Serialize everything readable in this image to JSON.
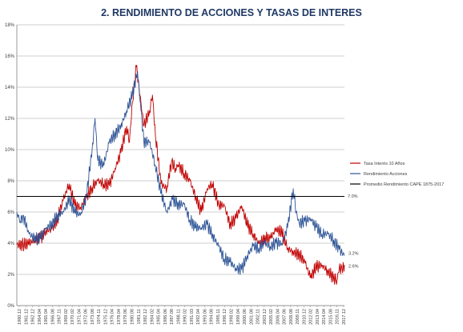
{
  "chart_data": {
    "type": "line",
    "title": "2. RENDIMIENTO DE ACCIONES Y TASAS DE INTERES",
    "xlabel": "",
    "ylabel": "",
    "ylim": [
      0,
      18
    ],
    "y_unit": "%",
    "y_ticks": [
      "0%",
      "2%",
      "4%",
      "6%",
      "8%",
      "10%",
      "12%",
      "14%",
      "16%",
      "18%"
    ],
    "x_range": [
      "1960.12",
      "2017.12"
    ],
    "x_tick_labels": [
      "1960.12",
      "1961.12",
      "1962.12",
      "1964.04",
      "1965.04",
      "1966.08",
      "1967.11",
      "1969.02",
      "1970.02",
      "1971.04",
      "1972.06",
      "1973.08",
      "1974.11",
      "1975.12",
      "1976.04",
      "1978.04",
      "1979.06",
      "1980.08",
      "1981.11",
      "1982.12",
      "1984.02",
      "1985.04",
      "1986.06",
      "1987.08",
      "1988.11",
      "1990.02",
      "1991.03",
      "1992.04",
      "1993.06",
      "1994.08",
      "1995.11",
      "1996.12",
      "1998.02",
      "1999.04",
      "2000.06",
      "2001.08",
      "2002.11",
      "2003.12",
      "2005.02",
      "2006.04",
      "2007.06",
      "2008.08",
      "2009.11",
      "2010.12",
      "2012.02",
      "2013.04",
      "2014.04",
      "2015.08",
      "2016.11",
      "2017.12"
    ],
    "legend_position": "right",
    "grid": "horizontal",
    "series": [
      {
        "name": "Tasa Interés 10 Años",
        "color": "#c00000",
        "points": [
          [
            1960.9,
            3.9
          ],
          [
            1962.0,
            3.9
          ],
          [
            1963.0,
            4.0
          ],
          [
            1964.0,
            4.2
          ],
          [
            1965.0,
            4.3
          ],
          [
            1966.0,
            4.8
          ],
          [
            1967.0,
            4.9
          ],
          [
            1968.0,
            5.6
          ],
          [
            1969.0,
            6.8
          ],
          [
            1970.0,
            7.8
          ],
          [
            1971.0,
            6.4
          ],
          [
            1972.0,
            6.3
          ],
          [
            1973.0,
            6.9
          ],
          [
            1974.0,
            7.6
          ],
          [
            1975.0,
            8.0
          ],
          [
            1976.0,
            7.8
          ],
          [
            1977.0,
            7.7
          ],
          [
            1978.0,
            8.8
          ],
          [
            1979.0,
            9.8
          ],
          [
            1980.0,
            11.5
          ],
          [
            1980.5,
            10.5
          ],
          [
            1981.0,
            13.0
          ],
          [
            1981.7,
            15.3
          ],
          [
            1982.5,
            13.0
          ],
          [
            1983.0,
            11.5
          ],
          [
            1984.0,
            12.5
          ],
          [
            1984.5,
            13.5
          ],
          [
            1985.0,
            11.0
          ],
          [
            1986.0,
            7.8
          ],
          [
            1987.0,
            7.5
          ],
          [
            1987.8,
            9.2
          ],
          [
            1988.5,
            8.8
          ],
          [
            1989.0,
            9.0
          ],
          [
            1990.0,
            8.5
          ],
          [
            1991.0,
            8.0
          ],
          [
            1992.0,
            7.0
          ],
          [
            1993.0,
            6.0
          ],
          [
            1994.0,
            7.5
          ],
          [
            1994.9,
            7.8
          ],
          [
            1996.0,
            6.5
          ],
          [
            1997.0,
            6.4
          ],
          [
            1998.0,
            5.2
          ],
          [
            1999.0,
            5.6
          ],
          [
            2000.0,
            6.4
          ],
          [
            2001.0,
            5.2
          ],
          [
            2002.0,
            4.6
          ],
          [
            2003.0,
            4.0
          ],
          [
            2004.0,
            4.3
          ],
          [
            2005.0,
            4.3
          ],
          [
            2006.0,
            4.9
          ],
          [
            2007.0,
            4.7
          ],
          [
            2008.0,
            3.7
          ],
          [
            2009.0,
            3.4
          ],
          [
            2010.0,
            3.3
          ],
          [
            2011.0,
            2.8
          ],
          [
            2012.0,
            1.8
          ],
          [
            2013.0,
            2.5
          ],
          [
            2014.0,
            2.6
          ],
          [
            2015.0,
            2.2
          ],
          [
            2016.0,
            1.8
          ],
          [
            2016.6,
            1.6
          ],
          [
            2017.0,
            2.4
          ],
          [
            2017.5,
            2.3
          ],
          [
            2017.9,
            2.6
          ]
        ]
      },
      {
        "name": "Rendimiento Acciones",
        "color": "#2f5597",
        "points": [
          [
            1960.9,
            6.0
          ],
          [
            1961.5,
            5.4
          ],
          [
            1962.0,
            5.8
          ],
          [
            1963.0,
            4.6
          ],
          [
            1964.0,
            4.3
          ],
          [
            1965.0,
            4.3
          ],
          [
            1966.0,
            5.0
          ],
          [
            1967.0,
            5.2
          ],
          [
            1968.0,
            5.8
          ],
          [
            1969.0,
            6.0
          ],
          [
            1970.0,
            6.8
          ],
          [
            1971.0,
            6.0
          ],
          [
            1972.0,
            5.8
          ],
          [
            1973.0,
            7.0
          ],
          [
            1974.0,
            10.0
          ],
          [
            1974.5,
            12.0
          ],
          [
            1975.0,
            9.3
          ],
          [
            1976.0,
            9.0
          ],
          [
            1977.0,
            10.5
          ],
          [
            1978.0,
            11.0
          ],
          [
            1979.0,
            11.5
          ],
          [
            1980.0,
            12.5
          ],
          [
            1981.0,
            13.5
          ],
          [
            1981.9,
            15.0
          ],
          [
            1982.5,
            12.5
          ],
          [
            1983.0,
            10.5
          ],
          [
            1984.0,
            10.5
          ],
          [
            1985.0,
            9.0
          ],
          [
            1986.0,
            7.2
          ],
          [
            1987.0,
            6.0
          ],
          [
            1988.0,
            6.8
          ],
          [
            1989.0,
            6.5
          ],
          [
            1990.0,
            6.5
          ],
          [
            1991.0,
            5.5
          ],
          [
            1992.0,
            5.0
          ],
          [
            1993.0,
            5.0
          ],
          [
            1994.0,
            5.2
          ],
          [
            1995.0,
            4.5
          ],
          [
            1996.0,
            3.8
          ],
          [
            1997.0,
            3.0
          ],
          [
            1998.0,
            2.8
          ],
          [
            1999.0,
            2.4
          ],
          [
            2000.0,
            2.3
          ],
          [
            2001.0,
            3.2
          ],
          [
            2002.0,
            3.8
          ],
          [
            2003.0,
            3.7
          ],
          [
            2004.0,
            4.0
          ],
          [
            2005.0,
            3.8
          ],
          [
            2006.0,
            4.0
          ],
          [
            2007.0,
            4.0
          ],
          [
            2008.0,
            5.0
          ],
          [
            2009.0,
            7.5
          ],
          [
            2009.5,
            6.0
          ],
          [
            2010.0,
            5.3
          ],
          [
            2011.0,
            5.4
          ],
          [
            2012.0,
            5.6
          ],
          [
            2013.0,
            5.0
          ],
          [
            2014.0,
            4.6
          ],
          [
            2015.0,
            4.6
          ],
          [
            2016.0,
            4.2
          ],
          [
            2017.0,
            3.6
          ],
          [
            2017.9,
            3.2
          ]
        ]
      },
      {
        "name": "Promedio Rendimiento CAPE 1875-2017",
        "color": "#000000",
        "points": [
          [
            1960.9,
            7.0
          ],
          [
            2017.9,
            7.0
          ]
        ]
      }
    ],
    "annotations": [
      {
        "text": "7.0%",
        "series": "Promedio Rendimiento CAPE 1875-2017",
        "at": [
          2017.9,
          7.0
        ]
      },
      {
        "text": "3.2%",
        "series": "Rendimiento Acciones",
        "at": [
          2017.9,
          3.2
        ]
      },
      {
        "text": "2.6%",
        "series": "Tasa Interés 10 Años",
        "at": [
          2017.9,
          2.6
        ]
      }
    ]
  }
}
